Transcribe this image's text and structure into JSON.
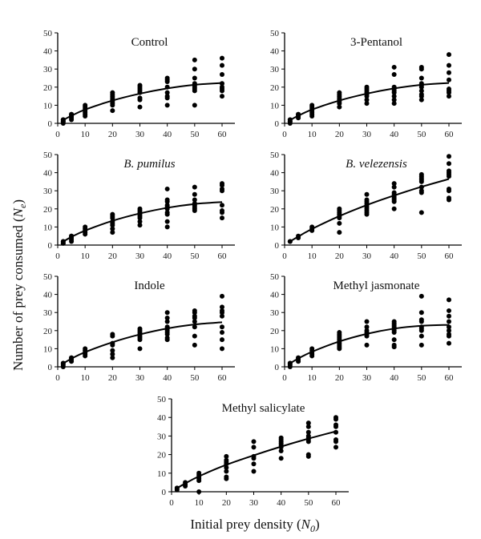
{
  "figure": {
    "ylabel": "Number of prey consumed (Ne)",
    "ylabel_main": "Number of prey consumed (",
    "ylabel_italic": "N",
    "ylabel_sub": "e",
    "ylabel_close": ")",
    "xlabel_main": "Initial prey density (",
    "xlabel_italic": "N",
    "xlabel_sub": "0",
    "xlabel_close": ")"
  },
  "chart_data": [
    {
      "type": "scatter",
      "title": "Control",
      "title_italic": false,
      "xlabel": "Initial prey density (N0)",
      "ylabel": "Number of prey consumed (Ne)",
      "xlim": [
        0,
        65
      ],
      "ylim": [
        0,
        50
      ],
      "xticks": [
        0,
        10,
        20,
        30,
        40,
        50,
        60
      ],
      "yticks": [
        0,
        10,
        20,
        30,
        40,
        50
      ],
      "points": {
        "2": [
          0,
          1,
          1,
          2,
          2,
          2
        ],
        "5": [
          2,
          3,
          4,
          4,
          5,
          5
        ],
        "10": [
          4,
          5,
          6,
          7,
          8,
          9,
          10
        ],
        "20": [
          7,
          10,
          11,
          12,
          13,
          14,
          15,
          16,
          17
        ],
        "30": [
          9,
          13,
          14,
          17,
          18,
          19,
          20,
          21
        ],
        "40": [
          10,
          14,
          15,
          17,
          20,
          23,
          24,
          25
        ],
        "50": [
          10,
          18,
          19,
          20,
          21,
          22,
          25,
          30,
          35
        ],
        "60": [
          15,
          18,
          19,
          20,
          22,
          27,
          32,
          36
        ]
      },
      "fit": [
        [
          2,
          1.8
        ],
        [
          5,
          4.2
        ],
        [
          10,
          7.6
        ],
        [
          20,
          12.6
        ],
        [
          30,
          16.4
        ],
        [
          40,
          19.3
        ],
        [
          50,
          21.3
        ],
        [
          60,
          22.3
        ]
      ]
    },
    {
      "type": "scatter",
      "title": "3-Pentanol",
      "title_italic": false,
      "xlim": [
        0,
        65
      ],
      "ylim": [
        0,
        50
      ],
      "xticks": [
        0,
        10,
        20,
        30,
        40,
        50,
        60
      ],
      "yticks": [
        0,
        10,
        20,
        30,
        40,
        50
      ],
      "points": {
        "2": [
          0,
          1,
          1,
          2,
          2
        ],
        "5": [
          3,
          4,
          4,
          5,
          5
        ],
        "10": [
          4,
          5,
          6,
          7,
          8,
          9,
          10
        ],
        "20": [
          9,
          11,
          12,
          13,
          14,
          15,
          16,
          17
        ],
        "30": [
          11,
          13,
          15,
          16,
          17,
          18,
          19,
          20
        ],
        "40": [
          11,
          13,
          15,
          17,
          18,
          19,
          20,
          27,
          31
        ],
        "50": [
          13,
          15,
          16,
          18,
          20,
          21,
          22,
          25,
          30,
          31
        ],
        "60": [
          15,
          17,
          18,
          19,
          24,
          28,
          32,
          38
        ]
      },
      "fit": [
        [
          2,
          1.8
        ],
        [
          5,
          4.2
        ],
        [
          10,
          7.6
        ],
        [
          20,
          12.6
        ],
        [
          30,
          16.4
        ],
        [
          40,
          19.3
        ],
        [
          50,
          21.3
        ],
        [
          60,
          22.3
        ]
      ]
    },
    {
      "type": "scatter",
      "title": "B. pumilus",
      "title_italic": true,
      "xlim": [
        0,
        65
      ],
      "ylim": [
        0,
        50
      ],
      "xticks": [
        0,
        10,
        20,
        30,
        40,
        50,
        60
      ],
      "yticks": [
        0,
        10,
        20,
        30,
        40,
        50
      ],
      "points": {
        "2": [
          1,
          1,
          2,
          2
        ],
        "5": [
          2,
          3,
          4,
          5,
          5
        ],
        "10": [
          6,
          7,
          8,
          9,
          10
        ],
        "20": [
          7,
          9,
          11,
          12,
          13,
          15,
          16,
          17
        ],
        "30": [
          11,
          13,
          15,
          16,
          17,
          18,
          19,
          20
        ],
        "40": [
          10,
          13,
          17,
          18,
          20,
          21,
          22,
          24,
          25,
          31
        ],
        "50": [
          19,
          20,
          21,
          22,
          23,
          25,
          28,
          32
        ],
        "60": [
          15,
          18,
          19,
          22,
          30,
          31,
          33,
          34
        ]
      },
      "fit": [
        [
          2,
          1.9
        ],
        [
          5,
          4.5
        ],
        [
          10,
          8.0
        ],
        [
          20,
          13.4
        ],
        [
          30,
          17.5
        ],
        [
          40,
          20.6
        ],
        [
          50,
          22.7
        ],
        [
          60,
          23.8
        ]
      ]
    },
    {
      "type": "scatter",
      "title": "B. velezensis",
      "title_italic": true,
      "xlim": [
        0,
        65
      ],
      "ylim": [
        0,
        50
      ],
      "xticks": [
        0,
        10,
        20,
        30,
        40,
        50,
        60
      ],
      "yticks": [
        0,
        10,
        20,
        30,
        40,
        50
      ],
      "points": {
        "2": [
          2,
          2
        ],
        "5": [
          4,
          5
        ],
        "10": [
          8,
          9,
          10
        ],
        "20": [
          7,
          12,
          15,
          16,
          17,
          18,
          19,
          20
        ],
        "30": [
          17,
          18,
          19,
          20,
          21,
          22,
          23,
          24,
          25,
          28
        ],
        "40": [
          20,
          24,
          25,
          26,
          27,
          28,
          29,
          32,
          34
        ],
        "50": [
          18,
          29,
          30,
          32,
          35,
          36,
          37,
          38,
          39
        ],
        "60": [
          25,
          26,
          30,
          31,
          38,
          39,
          40,
          41,
          45,
          49
        ]
      },
      "fit": [
        [
          2,
          2.0
        ],
        [
          5,
          4.7
        ],
        [
          10,
          8.9
        ],
        [
          20,
          16.0
        ],
        [
          30,
          22.1
        ],
        [
          40,
          27.4
        ],
        [
          50,
          32.2
        ],
        [
          60,
          36.5
        ]
      ]
    },
    {
      "type": "scatter",
      "title": "Indole",
      "title_italic": false,
      "xlim": [
        0,
        65
      ],
      "ylim": [
        0,
        50
      ],
      "xticks": [
        0,
        10,
        20,
        30,
        40,
        50,
        60
      ],
      "yticks": [
        0,
        10,
        20,
        30,
        40,
        50
      ],
      "points": {
        "2": [
          0,
          1,
          2,
          2
        ],
        "5": [
          3,
          4,
          5,
          5
        ],
        "10": [
          6,
          7,
          8,
          9,
          10
        ],
        "20": [
          5,
          7,
          9,
          12,
          13,
          17,
          18
        ],
        "30": [
          10,
          15,
          16,
          17,
          18,
          19,
          20,
          21
        ],
        "40": [
          15,
          16,
          18,
          19,
          20,
          21,
          22,
          25,
          27,
          30
        ],
        "50": [
          12,
          17,
          22,
          25,
          27,
          28,
          30,
          31
        ],
        "60": [
          10,
          15,
          19,
          22,
          28,
          30,
          31,
          33,
          39
        ]
      },
      "fit": [
        [
          2,
          1.9
        ],
        [
          5,
          4.5
        ],
        [
          10,
          8.1
        ],
        [
          20,
          13.6
        ],
        [
          30,
          17.9
        ],
        [
          40,
          21.2
        ],
        [
          50,
          23.4
        ],
        [
          60,
          24.6
        ]
      ]
    },
    {
      "type": "scatter",
      "title": "Methyl jasmonate",
      "title_italic": false,
      "xlim": [
        0,
        65
      ],
      "ylim": [
        0,
        50
      ],
      "xticks": [
        0,
        10,
        20,
        30,
        40,
        50,
        60
      ],
      "yticks": [
        0,
        10,
        20,
        30,
        40,
        50
      ],
      "points": {
        "2": [
          0,
          1,
          2,
          2
        ],
        "5": [
          3,
          4,
          5,
          5
        ],
        "10": [
          6,
          7,
          8,
          9,
          10
        ],
        "20": [
          10,
          11,
          12,
          13,
          14,
          15,
          16,
          17,
          18,
          19
        ],
        "30": [
          12,
          17,
          18,
          19,
          20,
          22,
          25
        ],
        "40": [
          11,
          12,
          15,
          19,
          20,
          21,
          22,
          23,
          24,
          25
        ],
        "50": [
          12,
          17,
          20,
          21,
          22,
          25,
          26,
          30,
          39
        ],
        "60": [
          13,
          17,
          18,
          20,
          22,
          25,
          28,
          31,
          37
        ]
      },
      "fit": [
        [
          2,
          1.9
        ],
        [
          5,
          4.6
        ],
        [
          10,
          8.3
        ],
        [
          20,
          14.0
        ],
        [
          30,
          18.2
        ],
        [
          40,
          21.1
        ],
        [
          50,
          22.7
        ],
        [
          60,
          23.2
        ]
      ]
    },
    {
      "type": "scatter",
      "title": "Methyl salicylate",
      "title_italic": false,
      "xlim": [
        0,
        65
      ],
      "ylim": [
        0,
        50
      ],
      "xticks": [
        0,
        10,
        20,
        30,
        40,
        50,
        60
      ],
      "yticks": [
        0,
        10,
        20,
        30,
        40,
        50
      ],
      "points": {
        "2": [
          1,
          2,
          2
        ],
        "5": [
          3,
          4,
          5
        ],
        "10": [
          0,
          6,
          7,
          8,
          9,
          10
        ],
        "20": [
          7,
          8,
          11,
          13,
          15,
          16,
          17,
          19
        ],
        "30": [
          11,
          15,
          18,
          19,
          24,
          27
        ],
        "40": [
          18,
          22,
          24,
          25,
          26,
          27,
          28,
          29
        ],
        "50": [
          19,
          20,
          27,
          28,
          29,
          30,
          32,
          35,
          37
        ],
        "60": [
          24,
          27,
          28,
          32,
          35,
          36,
          39,
          40
        ]
      },
      "fit": [
        [
          2,
          1.9
        ],
        [
          5,
          4.5
        ],
        [
          10,
          8.3
        ],
        [
          20,
          14.5
        ],
        [
          30,
          19.6
        ],
        [
          40,
          24.3
        ],
        [
          50,
          28.6
        ],
        [
          60,
          32.5
        ]
      ]
    }
  ]
}
